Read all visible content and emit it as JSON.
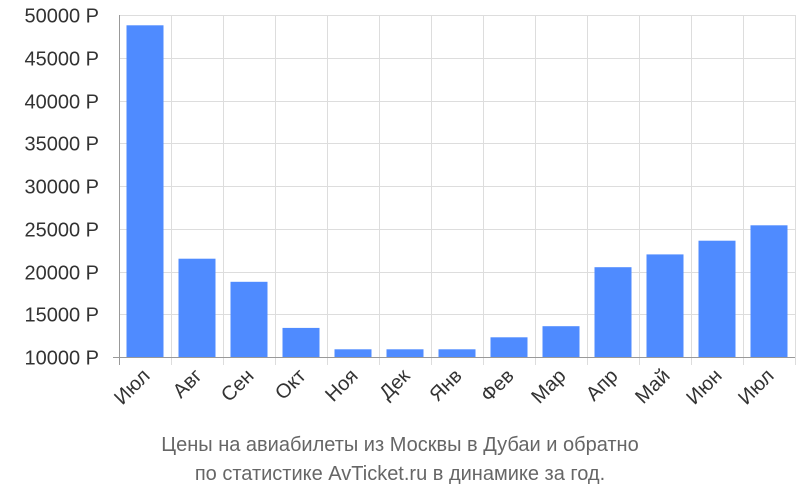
{
  "chart_data": {
    "type": "bar",
    "categories": [
      "Июл",
      "Авг",
      "Сен",
      "Окт",
      "Ноя",
      "Дек",
      "Янв",
      "Фев",
      "Мар",
      "Апр",
      "Май",
      "Июн",
      "Июл"
    ],
    "values": [
      48800,
      21500,
      18800,
      13400,
      10900,
      10900,
      10900,
      12300,
      13600,
      20500,
      22000,
      23600,
      25400
    ],
    "y_ticks": [
      10000,
      15000,
      20000,
      25000,
      30000,
      35000,
      40000,
      45000,
      50000
    ],
    "y_tick_labels": [
      "10000 Р",
      "15000 Р",
      "20000 Р",
      "25000 Р",
      "30000 Р",
      "35000 Р",
      "40000 Р",
      "45000 Р",
      "50000 Р"
    ],
    "ylim": [
      10000,
      50000
    ],
    "grid": true,
    "bar_color": "#4f8bff",
    "grid_color": "#dddddd",
    "axis_color": "#999999"
  },
  "caption": {
    "line1": "Цены на авиабилеты из Москвы в Дубаи и обратно",
    "line2": "по статистике AvTicket.ru в динамике за год."
  }
}
